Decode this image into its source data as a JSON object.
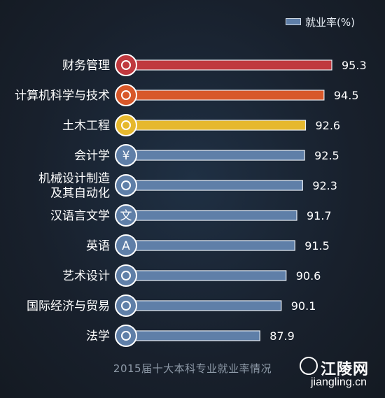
{
  "chart_data": {
    "type": "bar",
    "orientation": "horizontal",
    "title": "2015届十大本科专业就业率情况",
    "legend": {
      "label": "就业率(%)",
      "placement": "top-right"
    },
    "categories": [
      "财务管理",
      "计算机科学与技术",
      "土木工程",
      "会计学",
      "机械设计制造\n及其自动化",
      "汉语言文学",
      "英语",
      "艺术设计",
      "国际经济与贸易",
      "法学"
    ],
    "values": [
      95.3,
      94.5,
      92.6,
      92.5,
      92.3,
      91.7,
      91.5,
      90.6,
      90.1,
      87.9
    ],
    "value_labels": [
      "95.3",
      "94.5",
      "92.6",
      "92.5",
      "92.3",
      "91.7",
      "91.5",
      "90.6",
      "90.1",
      "87.9"
    ],
    "bar_colors": [
      "#c0393f",
      "#d8582a",
      "#e6b82e",
      "#5f7fa8",
      "#5f7fa8",
      "#5f7fa8",
      "#5f7fa8",
      "#5f7fa8",
      "#5f7fa8",
      "#5f7fa8"
    ],
    "icons": [
      "piggy-bank-icon",
      "monitor-icon",
      "trowel-icon",
      "yen-icon",
      "wrench-icon",
      "wen-character-icon",
      "letter-a-icon",
      "palette-icon",
      "airplane-icon",
      "scales-icon"
    ],
    "icon_glyphs": [
      "",
      "",
      "",
      "¥",
      "",
      "文",
      "A",
      "",
      "",
      ""
    ],
    "xlim": [
      75,
      100
    ],
    "grid": false
  },
  "watermark": {
    "brand_name": "江陵网",
    "brand_url": "jiangling.cn"
  }
}
